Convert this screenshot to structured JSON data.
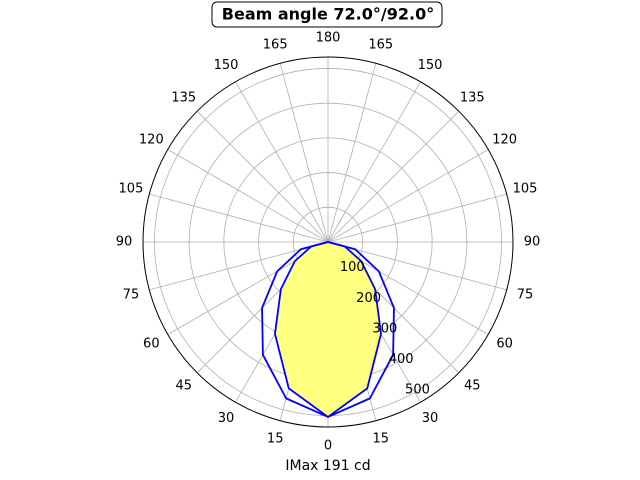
{
  "chart_data": {
    "type": "polar",
    "title": "Beam angle 72.0°/92.0°",
    "xlabel": "IMax 191 cd",
    "theta": [
      -90,
      -75,
      -60,
      -45,
      -30,
      -15,
      0,
      15,
      30,
      45,
      60,
      75,
      90
    ],
    "series": [
      {
        "color": "#0000ff",
        "fill": "#ffff80",
        "values": [
          0,
          50.2,
          110.3,
          192.0,
          305.6,
          436.7,
          504,
          436.7,
          305.6,
          192.0,
          110.3,
          50.2,
          0
        ]
      },
      {
        "color": "#0000ff",
        "values": [
          0,
          81.1,
          169.2,
          268.7,
          375.2,
          466.4,
          504,
          466.4,
          375.2,
          268.7,
          169.2,
          81.1,
          0
        ]
      }
    ],
    "ylim": [
      0,
      533
    ],
    "yticks": [
      100,
      200,
      300,
      400,
      500
    ],
    "xticks": [
      {
        "value": -165,
        "label": "165"
      },
      {
        "value": -150,
        "label": "150"
      },
      {
        "value": -135,
        "label": "135"
      },
      {
        "value": -120,
        "label": "120"
      },
      {
        "value": -105,
        "label": "105"
      },
      {
        "value": -90,
        "label": "90"
      },
      {
        "value": -75,
        "label": "75"
      },
      {
        "value": -60,
        "label": "60"
      },
      {
        "value": -45,
        "label": "45"
      },
      {
        "value": -30,
        "label": "30"
      },
      {
        "value": -15,
        "label": "15"
      },
      0,
      15,
      30,
      45,
      60,
      75,
      90,
      105,
      120,
      135,
      150,
      165,
      180
    ],
    "grid": true
  }
}
